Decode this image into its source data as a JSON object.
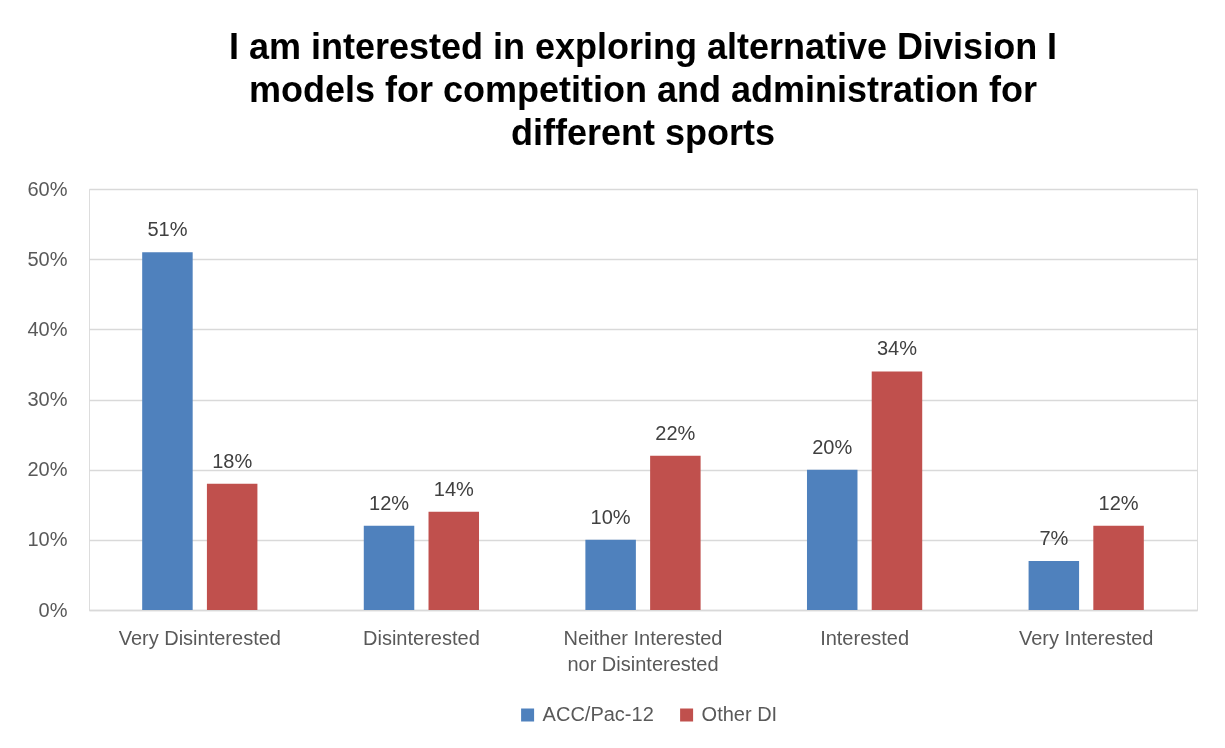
{
  "chart_data": {
    "type": "bar",
    "title": "I am interested in exploring alternative Division I models for competition and administration for different sports",
    "categories": [
      "Very Disinterested",
      "Disinterested",
      "Neither Interested nor Disinterested",
      "Interested",
      "Very Interested"
    ],
    "series": [
      {
        "name": "ACC/Pac-12",
        "color": "#4f81bd",
        "values": [
          51,
          12,
          10,
          20,
          7
        ],
        "value_labels": [
          "51%",
          "12%",
          "10%",
          "20%",
          "7%"
        ]
      },
      {
        "name": "Other DI",
        "color": "#c0504d",
        "values": [
          18,
          14,
          22,
          34,
          12
        ],
        "value_labels": [
          "18%",
          "14%",
          "22%",
          "34%",
          "12%"
        ]
      }
    ],
    "ylim": [
      0,
      60
    ],
    "yticks": [
      {
        "value": 0,
        "label": "0%"
      },
      {
        "value": 10,
        "label": "10%"
      },
      {
        "value": 20,
        "label": "20%"
      },
      {
        "value": 30,
        "label": "30%"
      },
      {
        "value": 40,
        "label": "40%"
      },
      {
        "value": 50,
        "label": "50%"
      },
      {
        "value": 60,
        "label": "60%"
      }
    ],
    "grid": "y",
    "legend": "bottom"
  }
}
